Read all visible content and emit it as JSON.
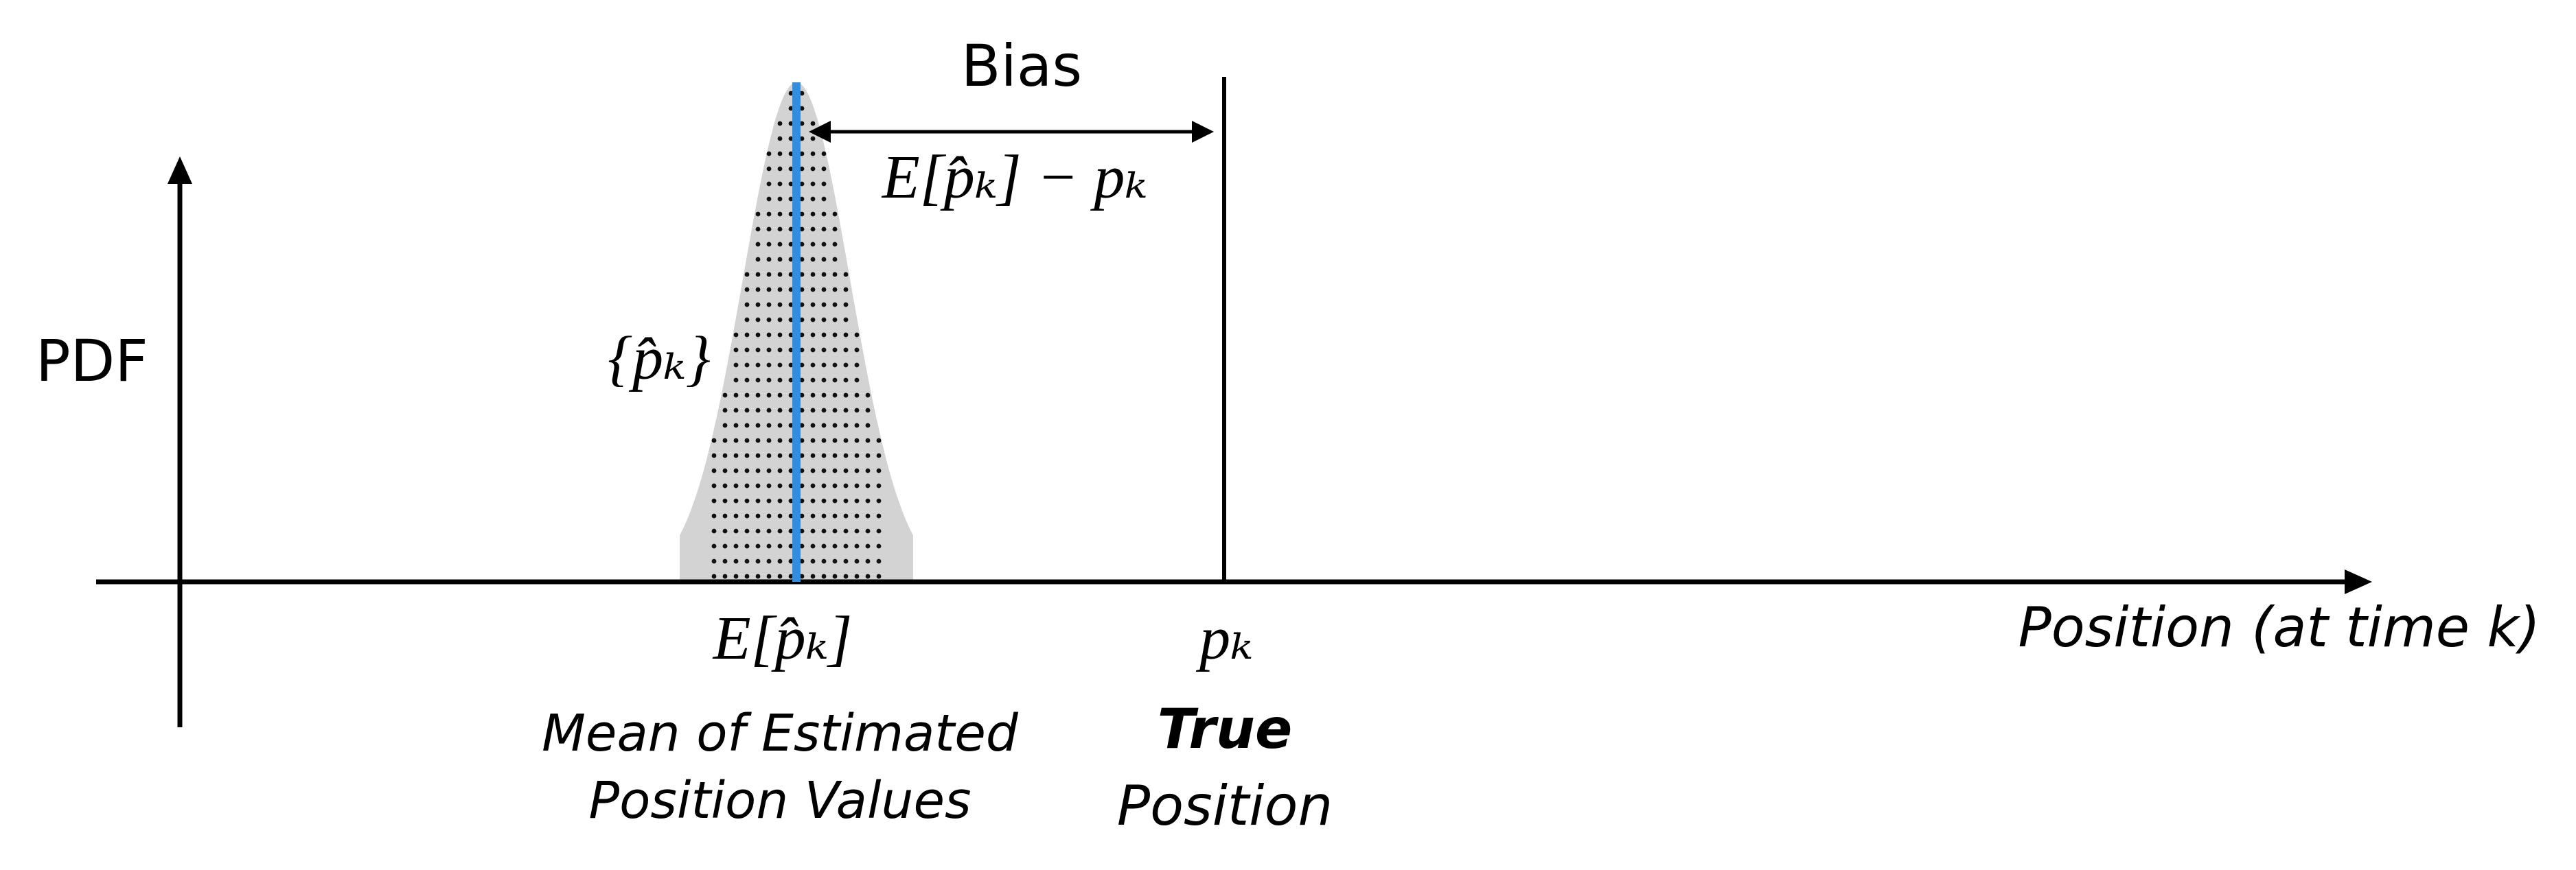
{
  "diagram": {
    "y_axis_label": "PDF",
    "x_axis_label": "Position (at time k)",
    "bias_label": "Bias",
    "bias_formula": "E[p̂ₖ] − pₖ",
    "estimates_label": "{p̂ₖ}",
    "mean_symbol": "E[p̂ₖ]",
    "mean_caption_line1": "Mean of Estimated",
    "mean_caption_line2": "Position Values",
    "true_symbol": "pₖ",
    "true_caption_line1": "True",
    "true_caption_line2": "Position"
  },
  "colors": {
    "axis": "#000000",
    "distribution_fill": "#d3d3d3",
    "dot": "#111111",
    "mean_line": "#2f8ee0",
    "true_line": "#000000"
  }
}
